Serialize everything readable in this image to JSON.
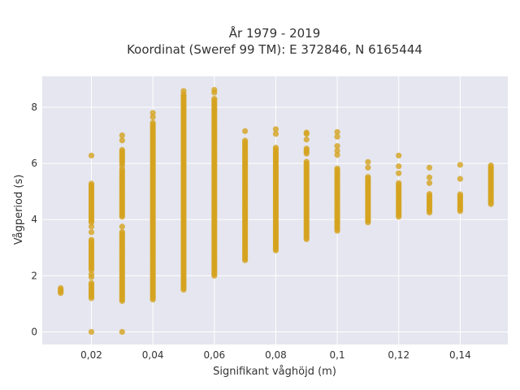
{
  "chart_data": {
    "type": "scatter",
    "title_line1": "År 1979 - 2019",
    "title_line2": "Koordinat (Sweref 99 TM): E 372846, N 6165444",
    "xlabel": "Signifikant våghöjd (m)",
    "ylabel": "Vågperiod (s)",
    "xlim": [
      0.004,
      0.1555
    ],
    "ylim": [
      -0.45,
      9.1
    ],
    "x_ticks": [
      {
        "value": 0.02,
        "label": "0,02"
      },
      {
        "value": 0.04,
        "label": "0,04"
      },
      {
        "value": 0.06,
        "label": "0,06"
      },
      {
        "value": 0.08,
        "label": "0,08"
      },
      {
        "value": 0.1,
        "label": "0,1"
      },
      {
        "value": 0.12,
        "label": "0,12"
      },
      {
        "value": 0.14,
        "label": "0,14"
      }
    ],
    "y_ticks": [
      {
        "value": 0,
        "label": "0"
      },
      {
        "value": 2,
        "label": "2"
      },
      {
        "value": 4,
        "label": "4"
      },
      {
        "value": 6,
        "label": "6"
      },
      {
        "value": 8,
        "label": "8"
      }
    ],
    "grid": true,
    "marker_color": "#d4a21e",
    "plot_bg": "#e5e6ef",
    "columns": [
      {
        "x": 0.01,
        "ranges": [
          [
            1.38,
            1.58
          ]
        ],
        "points": []
      },
      {
        "x": 0.02,
        "ranges": [
          [
            1.2,
            1.75
          ],
          [
            2.2,
            3.3
          ],
          [
            3.9,
            5.3
          ]
        ],
        "points": [
          0,
          6.28,
          1.95,
          2.05,
          3.55,
          3.75
        ]
      },
      {
        "x": 0.03,
        "ranges": [
          [
            1.1,
            3.6
          ],
          [
            4.1,
            5.8
          ],
          [
            6.0,
            6.5
          ]
        ],
        "points": [
          0,
          6.82,
          7.0,
          3.75,
          5.9
        ]
      },
      {
        "x": 0.04,
        "ranges": [
          [
            1.15,
            7.5
          ]
        ],
        "points": [
          7.65,
          7.8
        ]
      },
      {
        "x": 0.05,
        "ranges": [
          [
            1.5,
            8.5
          ]
        ],
        "points": [
          8.58
        ]
      },
      {
        "x": 0.06,
        "ranges": [
          [
            2.0,
            8.35
          ]
        ],
        "points": [
          8.52,
          8.62
        ]
      },
      {
        "x": 0.07,
        "ranges": [
          [
            2.55,
            6.85
          ]
        ],
        "points": [
          7.15
        ]
      },
      {
        "x": 0.08,
        "ranges": [
          [
            2.9,
            6.6
          ]
        ],
        "points": [
          7.05,
          7.22
        ]
      },
      {
        "x": 0.09,
        "ranges": [
          [
            3.3,
            6.1
          ],
          [
            6.35,
            6.55
          ]
        ],
        "points": [
          6.85,
          7.05,
          7.1
        ]
      },
      {
        "x": 0.1,
        "ranges": [
          [
            3.6,
            5.85
          ]
        ],
        "points": [
          6.3,
          6.45,
          6.62,
          6.95,
          7.12
        ]
      },
      {
        "x": 0.11,
        "ranges": [
          [
            3.9,
            5.55
          ]
        ],
        "points": [
          5.85,
          6.05
        ]
      },
      {
        "x": 0.12,
        "ranges": [
          [
            4.1,
            5.3
          ]
        ],
        "points": [
          5.65,
          5.9,
          6.28
        ]
      },
      {
        "x": 0.13,
        "ranges": [
          [
            4.25,
            4.95
          ]
        ],
        "points": [
          5.3,
          5.5,
          5.85
        ]
      },
      {
        "x": 0.14,
        "ranges": [
          [
            4.3,
            4.95
          ]
        ],
        "points": [
          5.45,
          5.95
        ]
      },
      {
        "x": 0.15,
        "ranges": [
          [
            4.55,
            5.95
          ]
        ],
        "points": []
      }
    ]
  }
}
